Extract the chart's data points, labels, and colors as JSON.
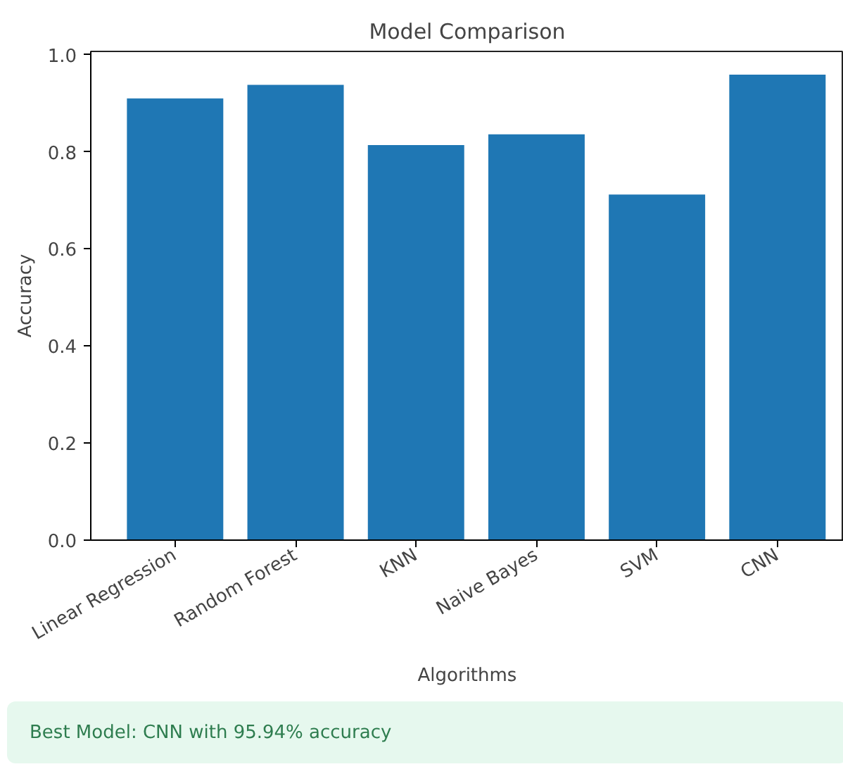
{
  "chart_data": {
    "type": "bar",
    "title": "Model Comparison",
    "xlabel": "Algorithms",
    "ylabel": "Accuracy",
    "categories": [
      "Linear Regression",
      "Random Forest",
      "KNN",
      "Naive Bayes",
      "SVM",
      "CNN"
    ],
    "values": [
      0.91,
      0.938,
      0.814,
      0.836,
      0.712,
      0.959
    ],
    "color": "#1f77b4",
    "ylim": [
      0,
      1.007
    ],
    "yticks": [
      {
        "value": 0,
        "label": "0.0"
      },
      {
        "value": 0.2,
        "label": "0.2"
      },
      {
        "value": 0.4,
        "label": "0.4"
      },
      {
        "value": 0.6,
        "label": "0.6"
      },
      {
        "value": 0.8,
        "label": "0.8"
      },
      {
        "value": 1.0,
        "label": "1.0"
      }
    ],
    "grid": false,
    "annotations": [
      "Best Model: CNN with 95.94% accuracy"
    ]
  }
}
